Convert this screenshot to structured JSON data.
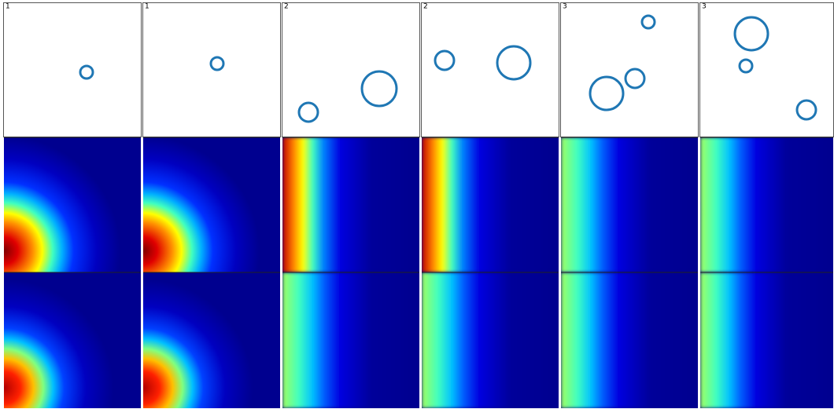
{
  "panels": [
    {
      "label": "1"
    },
    {
      "label": "1"
    },
    {
      "label": "2"
    },
    {
      "label": "2"
    },
    {
      "label": "3"
    },
    {
      "label": "3"
    }
  ]
}
